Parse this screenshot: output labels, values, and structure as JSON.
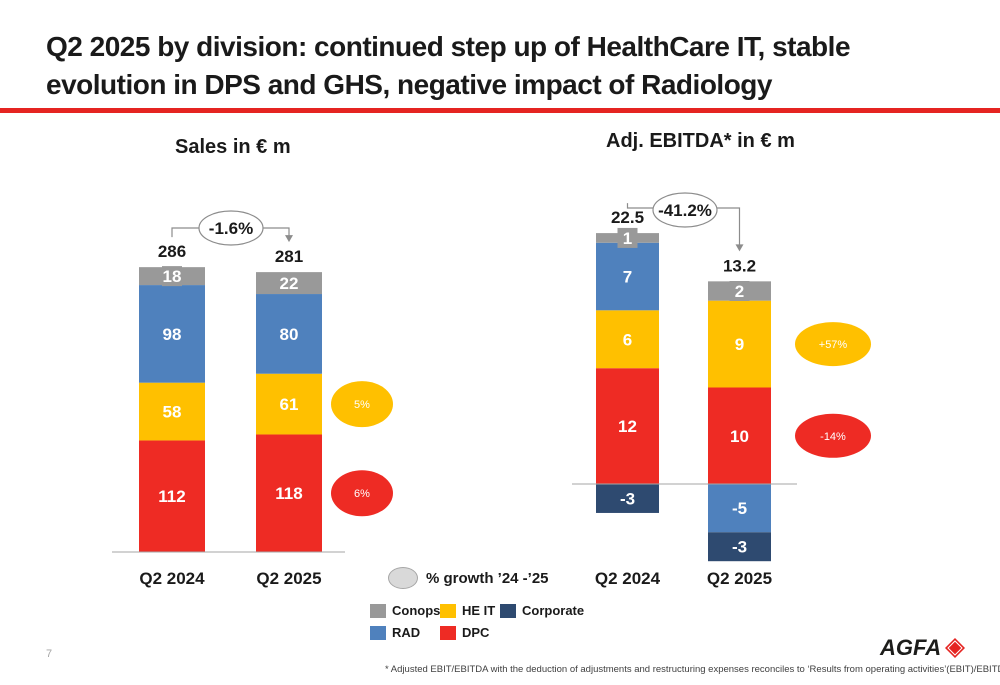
{
  "page": {
    "title": "Q2 2025 by division: continued step up of HealthCare IT, stable evolution in DPS and GHS, negative impact of Radiology",
    "page_number": "7",
    "footnote": "* Adjusted EBIT/EBITDA with the deduction of adjustments and restructuring expenses reconciles to ‘Results from operating activities’(EBIT)/EBITDA",
    "logo_text": "AGFA",
    "logo_mark_text": "Agfa"
  },
  "colors": {
    "accent": "#e52421",
    "Conops": "#999999",
    "RAD": "#4f81bd",
    "HE IT": "#ffc000",
    "DPC": "#ee2b24",
    "Corporate": "#2e4a70",
    "growth_bubble": "#ffc000",
    "growth_bubble_red": "#ee2b24"
  },
  "legend": {
    "growth_label": "% growth ’24 -’25",
    "items": [
      {
        "name": "Conops",
        "color": "#999999"
      },
      {
        "name": "HE IT",
        "color": "#ffc000"
      },
      {
        "name": "Corporate",
        "color": "#2e4a70"
      },
      {
        "name": "RAD",
        "color": "#4f81bd"
      },
      {
        "name": "DPC",
        "color": "#ee2b24"
      }
    ]
  },
  "chart_data": [
    {
      "type": "bar",
      "stacked": true,
      "title": "Sales in € m",
      "categories": [
        "Q2 2024",
        "Q2 2025"
      ],
      "series": [
        {
          "name": "DPC",
          "values": [
            112,
            118
          ],
          "labels": [
            "112",
            "118"
          ]
        },
        {
          "name": "HE IT",
          "values": [
            58,
            61
          ],
          "labels": [
            "58",
            "61"
          ]
        },
        {
          "name": "RAD",
          "values": [
            98,
            80
          ],
          "labels": [
            "98",
            "80"
          ]
        },
        {
          "name": "Conops",
          "values": [
            18,
            22
          ],
          "labels": [
            "18",
            "22"
          ]
        }
      ],
      "totals": [
        "286",
        "281"
      ],
      "change_label": "-1.6%",
      "growth_bubbles": [
        {
          "series": "HE IT",
          "label": "5%",
          "color": "#ffc000"
        },
        {
          "series": "DPC",
          "label": "6%",
          "color": "#ee2b24"
        }
      ]
    },
    {
      "type": "bar",
      "stacked": true,
      "title": "Adj. EBITDA* in € m",
      "categories": [
        "Q2 2024",
        "Q2 2025"
      ],
      "series": [
        {
          "name": "DPC",
          "values": [
            12,
            10
          ],
          "labels": [
            "12",
            "10"
          ]
        },
        {
          "name": "HE IT",
          "values": [
            6,
            9
          ],
          "labels": [
            "6",
            "9"
          ]
        },
        {
          "name": "RAD",
          "values": [
            7,
            -5
          ],
          "labels": [
            "7",
            "-5"
          ]
        },
        {
          "name": "Conops",
          "values": [
            1,
            2
          ],
          "labels": [
            "1",
            "2"
          ]
        },
        {
          "name": "Corporate",
          "values": [
            -3,
            -3
          ],
          "labels": [
            "-3",
            "-3"
          ]
        }
      ],
      "totals": [
        "22.5",
        "13.2"
      ],
      "change_label": "-41.2%",
      "growth_bubbles": [
        {
          "series": "HE IT",
          "label": "+57%",
          "color": "#ffc000"
        },
        {
          "series": "DPC",
          "label": "-14%",
          "color": "#ee2b24"
        }
      ]
    }
  ]
}
